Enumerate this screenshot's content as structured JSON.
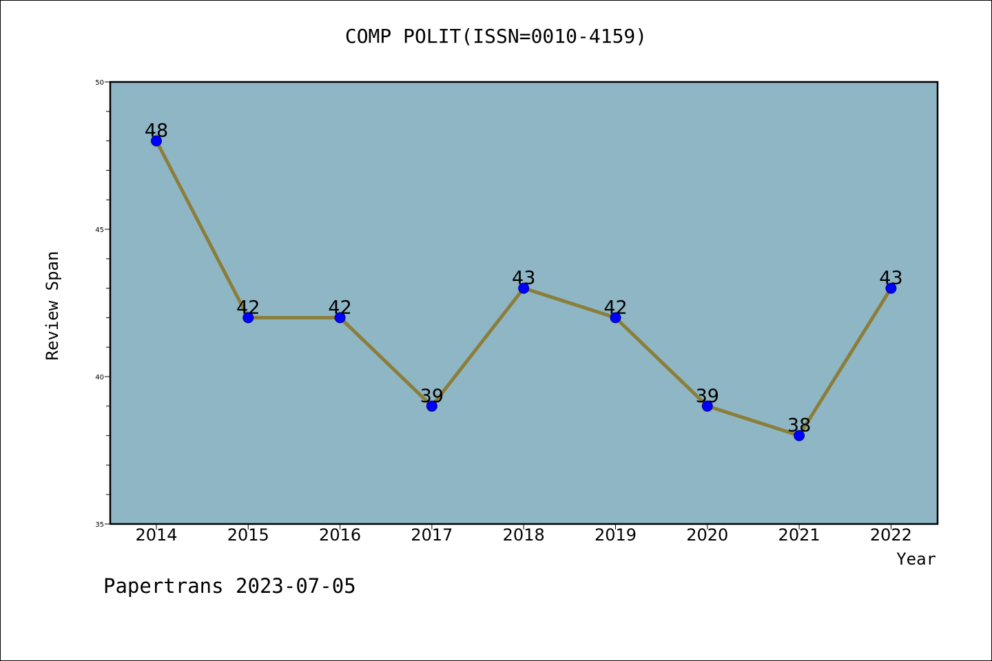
{
  "chart_data": {
    "type": "line",
    "title": "COMP POLIT(ISSN=0010-4159)",
    "xlabel": "Year",
    "ylabel": "Review Span",
    "categories": [
      "2014",
      "2015",
      "2016",
      "2017",
      "2018",
      "2019",
      "2020",
      "2021",
      "2022"
    ],
    "values": [
      48,
      42,
      42,
      39,
      43,
      42,
      39,
      38,
      43
    ],
    "data_labels": [
      "48",
      "42",
      "42",
      "39",
      "43",
      "42",
      "39",
      "38",
      "43"
    ],
    "ylim": [
      35,
      50
    ],
    "yticks": [
      "35",
      "40",
      "45",
      "50"
    ],
    "grid": false,
    "legend": "none",
    "colors": {
      "plot_background": "#8fb6c4",
      "line": "#8b7e3a",
      "marker": "#0000ff",
      "marker_edge": "#00008b"
    }
  },
  "footer": {
    "watermark": "Papertrans 2023-07-05"
  }
}
